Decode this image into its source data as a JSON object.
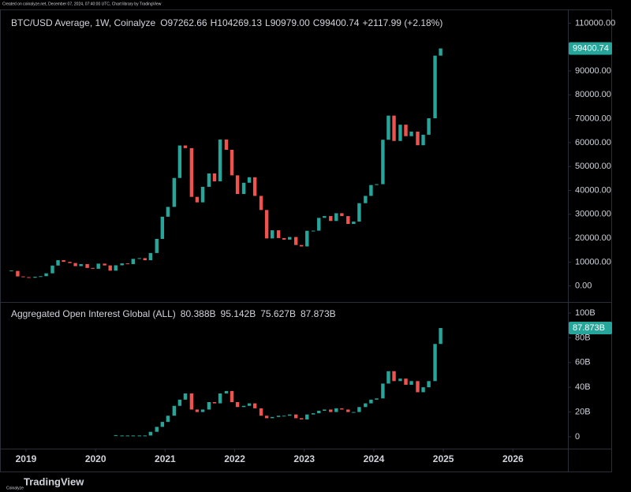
{
  "chart_data": [
    {
      "type": "candlestick",
      "title": "BTC/USD Average, 1W, Coinalyze",
      "ohlc_labels": [
        {
          "label": "O",
          "value": "97262.66"
        },
        {
          "label": "H",
          "value": "104269.13"
        },
        {
          "label": "L",
          "value": "90979.00"
        },
        {
          "label": "C",
          "value": "99400.74"
        }
      ],
      "change": "+2117.99 (+2.18%)",
      "last_price": 99400.74,
      "last_price_label": "99400.74",
      "up_color": "#26a69a",
      "down_color": "#ef5350",
      "xlim": [
        2018.626,
        2026.79
      ],
      "xticks": [
        2019,
        2020,
        2021,
        2022,
        2023,
        2024,
        2025,
        2026
      ],
      "ylim": [
        -6700,
        115400
      ],
      "yticks": [
        {
          "value": 0,
          "label": "0.00"
        },
        {
          "value": 10000,
          "label": "10000.00"
        },
        {
          "value": 20000,
          "label": "20000.00"
        },
        {
          "value": 30000,
          "label": "30000.00"
        },
        {
          "value": 40000,
          "label": "40000.00"
        },
        {
          "value": 50000,
          "label": "50000.00"
        },
        {
          "value": 60000,
          "label": "60000.00"
        },
        {
          "value": 70000,
          "label": "70000.00"
        },
        {
          "value": 80000,
          "label": "80000.00"
        },
        {
          "value": 90000,
          "label": "90000.00"
        },
        {
          "value": 110000,
          "label": "110000.00"
        }
      ],
      "grid": false,
      "x": [
        2018.79,
        2018.88,
        2018.96,
        2019.04,
        2019.13,
        2019.21,
        2019.29,
        2019.38,
        2019.46,
        2019.54,
        2019.63,
        2019.71,
        2019.79,
        2019.88,
        2019.96,
        2020.04,
        2020.13,
        2020.21,
        2020.29,
        2020.38,
        2020.46,
        2020.54,
        2020.63,
        2020.71,
        2020.79,
        2020.88,
        2020.96,
        2021.04,
        2021.13,
        2021.21,
        2021.29,
        2021.38,
        2021.46,
        2021.54,
        2021.63,
        2021.71,
        2021.79,
        2021.88,
        2021.96,
        2022.04,
        2022.13,
        2022.21,
        2022.29,
        2022.38,
        2022.46,
        2022.54,
        2022.63,
        2022.71,
        2022.79,
        2022.88,
        2022.96,
        2023.04,
        2023.13,
        2023.21,
        2023.29,
        2023.38,
        2023.46,
        2023.54,
        2023.63,
        2023.71,
        2023.79,
        2023.88,
        2023.96,
        2024.04,
        2024.13,
        2024.21,
        2024.29,
        2024.38,
        2024.46,
        2024.54,
        2024.63,
        2024.71,
        2024.79,
        2024.88,
        2024.96
      ],
      "values": [
        6300,
        4000,
        3700,
        3450,
        3850,
        4100,
        5300,
        8550,
        10800,
        10100,
        9600,
        8300,
        9150,
        7550,
        7200,
        9350,
        8600,
        6400,
        8650,
        9450,
        9150,
        11350,
        11650,
        10780,
        13800,
        19700,
        28990,
        33100,
        45200,
        58800,
        57700,
        37300,
        35000,
        41500,
        47100,
        43800,
        61300,
        57000,
        46300,
        38500,
        43200,
        45500,
        37700,
        31800,
        19900,
        23300,
        20050,
        19400,
        20500,
        17150,
        16550,
        23100,
        23150,
        28500,
        29250,
        27200,
        30450,
        29250,
        25950,
        26950,
        34650,
        37700,
        42250,
        42600,
        61200,
        71300,
        60700,
        67500,
        62700,
        64600,
        58900,
        63300,
        70200,
        96400,
        99400.74
      ]
    },
    {
      "type": "candlestick",
      "title": "Aggregated Open Interest Global (ALL)",
      "ohlc_values": [
        "80.388B",
        "95.142B",
        "75.627B",
        "87.873B"
      ],
      "last_price": 87.873,
      "last_price_label": "87.873B",
      "up_color": "#26a69a",
      "down_color": "#ef5350",
      "xlim": [
        2018.626,
        2026.79
      ],
      "xticks": [
        2019,
        2020,
        2021,
        2022,
        2023,
        2024,
        2025,
        2026
      ],
      "ylim": [
        -9.6,
        108.3
      ],
      "yticks": [
        0,
        {
          "value": 20,
          "label": "20B"
        },
        {
          "value": 40,
          "label": "40B"
        },
        {
          "value": 60,
          "label": "60B"
        },
        {
          "value": 80,
          "label": "80B"
        },
        {
          "value": 100,
          "label": "100B"
        }
      ],
      "grid": false,
      "x": [
        2020.29,
        2020.38,
        2020.46,
        2020.54,
        2020.63,
        2020.71,
        2020.79,
        2020.88,
        2020.96,
        2021.04,
        2021.13,
        2021.21,
        2021.29,
        2021.38,
        2021.46,
        2021.54,
        2021.63,
        2021.71,
        2021.79,
        2021.88,
        2021.96,
        2022.04,
        2022.13,
        2022.21,
        2022.29,
        2022.38,
        2022.46,
        2022.54,
        2022.63,
        2022.71,
        2022.79,
        2022.88,
        2022.96,
        2023.04,
        2023.13,
        2023.21,
        2023.29,
        2023.38,
        2023.46,
        2023.54,
        2023.63,
        2023.71,
        2023.79,
        2023.88,
        2023.96,
        2024.04,
        2024.13,
        2024.21,
        2024.29,
        2024.38,
        2024.46,
        2024.54,
        2024.63,
        2024.71,
        2024.79,
        2024.88,
        2024.96
      ],
      "values": [
        1,
        1,
        1,
        1,
        1,
        1,
        4,
        8,
        12,
        17,
        25,
        30,
        35,
        22,
        20,
        22,
        28,
        27,
        35,
        37,
        28,
        24,
        25,
        27,
        23,
        17,
        15,
        16,
        17,
        17,
        18,
        15,
        14,
        18,
        19,
        21,
        22,
        20,
        23,
        22,
        20,
        20,
        24,
        27,
        30,
        31,
        43,
        53,
        45,
        47,
        42,
        45,
        36,
        40,
        45,
        75,
        87.873
      ]
    }
  ],
  "header_note": "Created on coinalyze.net, December 07, 2024, 07:40:00 UTC, Chart library by TradingView",
  "footer": {
    "logo": "TradingView",
    "source": "Coinalyze"
  }
}
